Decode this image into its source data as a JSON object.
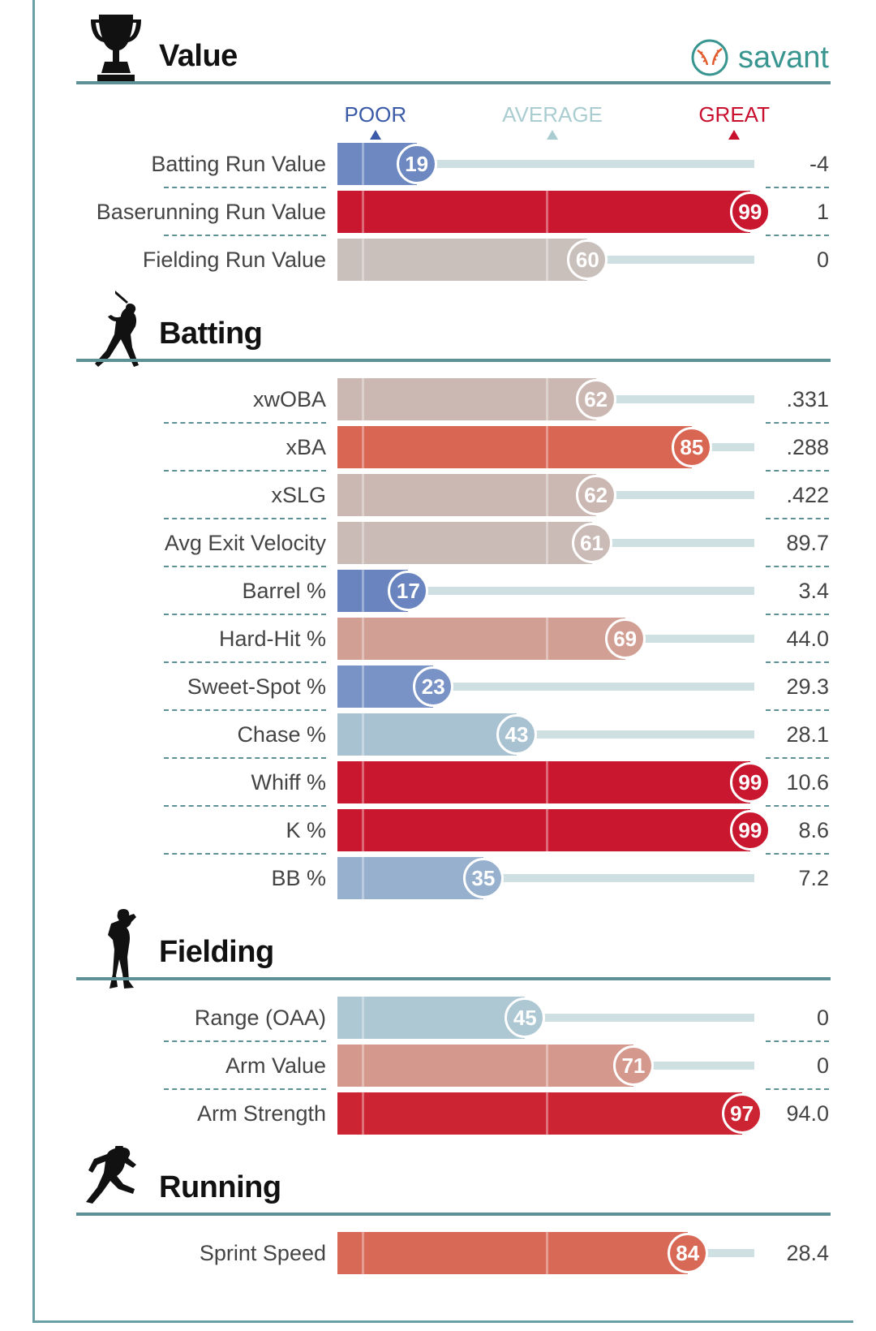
{
  "brand": {
    "name": "savant"
  },
  "scale": {
    "poor": "POOR",
    "average": "AVERAGE",
    "great": "GREAT"
  },
  "colors": {
    "frame": "#6a9fa6",
    "rule": "#5d9196",
    "poor": "#3a5aa8",
    "average": "#a9cdd1",
    "great": "#c8102e",
    "track": "#cfe0e2"
  },
  "sections": [
    {
      "title": "Value",
      "icon": "trophy-icon",
      "rows": [
        {
          "label": "Batting Run Value",
          "percentile": 19,
          "value": "-4"
        },
        {
          "label": "Baserunning Run Value",
          "percentile": 99,
          "value": "1"
        },
        {
          "label": "Fielding Run Value",
          "percentile": 60,
          "value": "0"
        }
      ]
    },
    {
      "title": "Batting",
      "icon": "batter-icon",
      "rows": [
        {
          "label": "xwOBA",
          "percentile": 62,
          "value": ".331"
        },
        {
          "label": "xBA",
          "percentile": 85,
          "value": ".288"
        },
        {
          "label": "xSLG",
          "percentile": 62,
          "value": ".422"
        },
        {
          "label": "Avg Exit Velocity",
          "percentile": 61,
          "value": "89.7"
        },
        {
          "label": "Barrel %",
          "percentile": 17,
          "value": "3.4"
        },
        {
          "label": "Hard-Hit %",
          "percentile": 69,
          "value": "44.0"
        },
        {
          "label": "Sweet-Spot %",
          "percentile": 23,
          "value": "29.3"
        },
        {
          "label": "Chase %",
          "percentile": 43,
          "value": "28.1"
        },
        {
          "label": "Whiff %",
          "percentile": 99,
          "value": "10.6"
        },
        {
          "label": "K %",
          "percentile": 99,
          "value": "8.6"
        },
        {
          "label": "BB %",
          "percentile": 35,
          "value": "7.2"
        }
      ]
    },
    {
      "title": "Fielding",
      "icon": "fielder-icon",
      "rows": [
        {
          "label": "Range (OAA)",
          "percentile": 45,
          "value": "0"
        },
        {
          "label": "Arm Value",
          "percentile": 71,
          "value": "0"
        },
        {
          "label": "Arm Strength",
          "percentile": 97,
          "value": "94.0"
        }
      ]
    },
    {
      "title": "Running",
      "icon": "runner-icon",
      "rows": [
        {
          "label": "Sprint Speed",
          "percentile": 84,
          "value": "28.4"
        }
      ]
    }
  ],
  "chart_data": {
    "type": "bar",
    "orientation": "horizontal",
    "xlim": [
      0,
      100
    ],
    "categories": [
      "Batting Run Value",
      "Baserunning Run Value",
      "Fielding Run Value",
      "xwOBA",
      "xBA",
      "xSLG",
      "Avg Exit Velocity",
      "Barrel %",
      "Hard-Hit %",
      "Sweet-Spot %",
      "Chase %",
      "Whiff %",
      "K %",
      "BB %",
      "Range (OAA)",
      "Arm Value",
      "Arm Strength",
      "Sprint Speed"
    ],
    "values": [
      19,
      99,
      60,
      62,
      85,
      62,
      61,
      17,
      69,
      23,
      43,
      99,
      99,
      35,
      45,
      71,
      97,
      84
    ],
    "stat_values": [
      "-4",
      "1",
      "0",
      ".331",
      ".288",
      ".422",
      "89.7",
      "3.4",
      "44.0",
      "29.3",
      "28.1",
      "10.6",
      "8.6",
      "7.2",
      "0",
      "0",
      "94.0",
      "28.4"
    ]
  }
}
